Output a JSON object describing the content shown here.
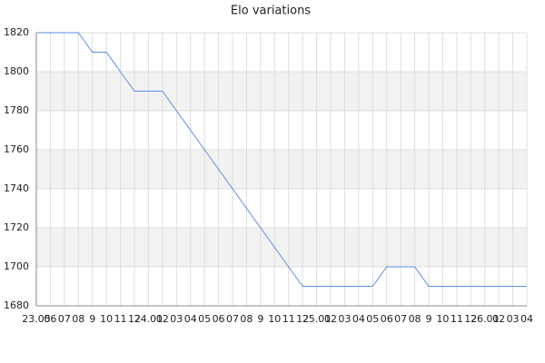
{
  "chart_data": {
    "type": "line",
    "title": "Elo variations",
    "categories": [
      "23.05",
      "06",
      "07",
      "08",
      "9",
      "10",
      "11",
      "12",
      "24.01",
      "02",
      "03",
      "04",
      "05",
      "06",
      "07",
      "08",
      "9",
      "10",
      "11",
      "12",
      "25.01",
      "02",
      "03",
      "04",
      "05",
      "06",
      "07",
      "08",
      "9",
      "10",
      "11",
      "12",
      "26.01",
      "02",
      "03",
      "04"
    ],
    "values": [
      1820,
      1820,
      1820,
      1820,
      1810,
      1810,
      1800,
      1790,
      1790,
      1790,
      1780,
      1770,
      1760,
      1750,
      1740,
      1730,
      1720,
      1710,
      1700,
      1690,
      1690,
      1690,
      1690,
      1690,
      1690,
      1700,
      1700,
      1700,
      1690,
      1690,
      1690,
      1690,
      1690,
      1690,
      1690,
      1690
    ],
    "color": "#5b8fe0",
    "ylim": [
      1680,
      1820
    ],
    "yticks": [
      1680,
      1700,
      1720,
      1740,
      1760,
      1780,
      1800,
      1820
    ],
    "grid": true
  }
}
